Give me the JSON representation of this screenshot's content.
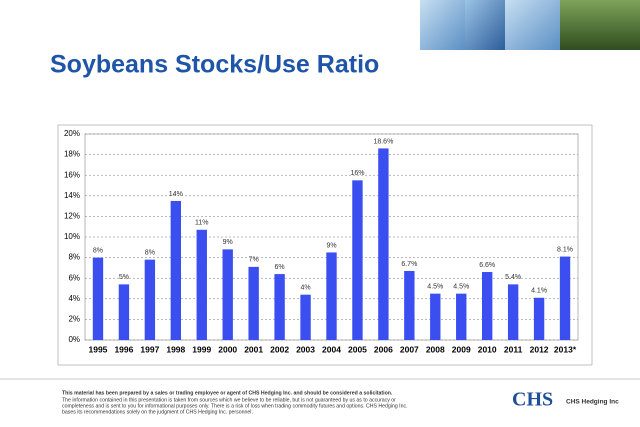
{
  "chart_data": {
    "type": "bar",
    "title": "Soybeans Stocks/Use Ratio",
    "categories": [
      "1995",
      "1996",
      "1997",
      "1998",
      "1999",
      "2000",
      "2001",
      "2002",
      "2003",
      "2004",
      "2005",
      "2006",
      "2007",
      "2008",
      "2009",
      "2010",
      "2011",
      "2012",
      "2013*"
    ],
    "values": [
      8,
      5.4,
      7.8,
      13.5,
      10.7,
      8.8,
      7.1,
      6.4,
      4.4,
      8.5,
      15.5,
      18.6,
      6.7,
      4.5,
      4.5,
      6.6,
      5.4,
      4.1,
      8.1
    ],
    "value_labels": [
      "8%",
      "5%",
      "8%",
      "14%",
      "11%",
      "9%",
      "7%",
      "6%",
      "4%",
      "9%",
      "16%",
      "18.6%",
      "6.7%",
      "4.5%",
      "4.5%",
      "6.6%",
      "5.4%",
      "4.1%",
      "8.1%"
    ],
    "color": "#3b4ef0",
    "ylim": [
      0,
      20
    ],
    "yticks": [
      {
        "value": 0,
        "label": "0%"
      },
      {
        "value": 2,
        "label": "2%"
      },
      {
        "value": 4,
        "label": "4%"
      },
      {
        "value": 6,
        "label": "6%"
      },
      {
        "value": 8,
        "label": "8%"
      },
      {
        "value": 10,
        "label": "10%"
      },
      {
        "value": 12,
        "label": "12%"
      },
      {
        "value": 14,
        "label": "14%"
      },
      {
        "value": 16,
        "label": "16%"
      },
      {
        "value": 18,
        "label": "18%"
      },
      {
        "value": 20,
        "label": "20%"
      }
    ],
    "grid": true
  },
  "footer": {
    "disclaimer": [
      "This material has been prepared by a sales or trading employee or agent of CHS Hedging Inc. and should be considered a solicitation.",
      "The information contained in this presentation is taken from sources which we believe to be reliable, but is not guaranteed by us as to accuracy or",
      "completeness and is sent to you for informational purposes only. There is a risk of loss when trading commodity futures and options. CHS Hedging Inc.",
      "bases its recommendations solely on the judgment of CHS Hedging Inc. personnel."
    ],
    "logo": "CHS",
    "company": "CHS Hedging Inc"
  }
}
